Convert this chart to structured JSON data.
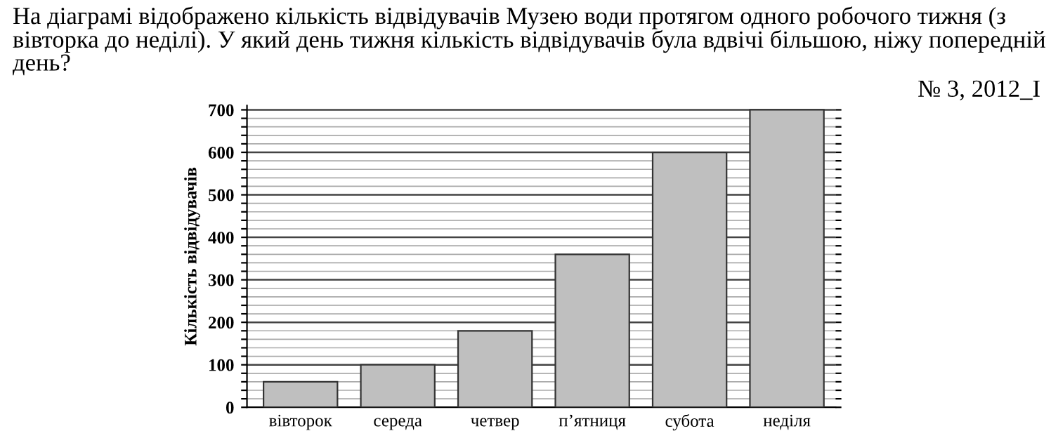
{
  "chart_data": {
    "type": "bar",
    "title": "На діаграмі відображено кількість відвідувачів Музею води протягом одного робочого тижня (з вівторка до неділі). У який день тижня кількість відвідувачів була вдвічі більшою, ніжу попередній день?",
    "annotations": [
      "№ 3, 2012_I"
    ],
    "ylabel": "Кількість відвідувачів",
    "categories": [
      "вівторок",
      "середа",
      "четвер",
      "п’ятниця",
      "субота",
      "неділя"
    ],
    "values": [
      60,
      100,
      180,
      360,
      600,
      700
    ],
    "color": "#bfbfbf",
    "ylim": [
      0,
      710
    ],
    "yticks": [
      0,
      {
        "value": 20,
        "label": null
      },
      {
        "value": 40,
        "label": null
      },
      {
        "value": 60,
        "label": null
      },
      {
        "value": 80,
        "label": null
      },
      100,
      {
        "value": 120,
        "label": null
      },
      {
        "value": 140,
        "label": null
      },
      {
        "value": 160,
        "label": null
      },
      {
        "value": 180,
        "label": null
      },
      200,
      {
        "value": 220,
        "label": null
      },
      {
        "value": 240,
        "label": null
      },
      {
        "value": 260,
        "label": null
      },
      {
        "value": 280,
        "label": null
      },
      300,
      {
        "value": 320,
        "label": null
      },
      {
        "value": 340,
        "label": null
      },
      {
        "value": 360,
        "label": null
      },
      {
        "value": 380,
        "label": null
      },
      400,
      {
        "value": 420,
        "label": null
      },
      {
        "value": 440,
        "label": null
      },
      {
        "value": 460,
        "label": null
      },
      {
        "value": 480,
        "label": null
      },
      500,
      {
        "value": 520,
        "label": null
      },
      {
        "value": 540,
        "label": null
      },
      {
        "value": 560,
        "label": null
      },
      {
        "value": 580,
        "label": null
      },
      600,
      {
        "value": 620,
        "label": null
      },
      {
        "value": 640,
        "label": null
      },
      {
        "value": 660,
        "label": null
      },
      {
        "value": 680,
        "label": null
      },
      700
    ],
    "grid": "y"
  }
}
